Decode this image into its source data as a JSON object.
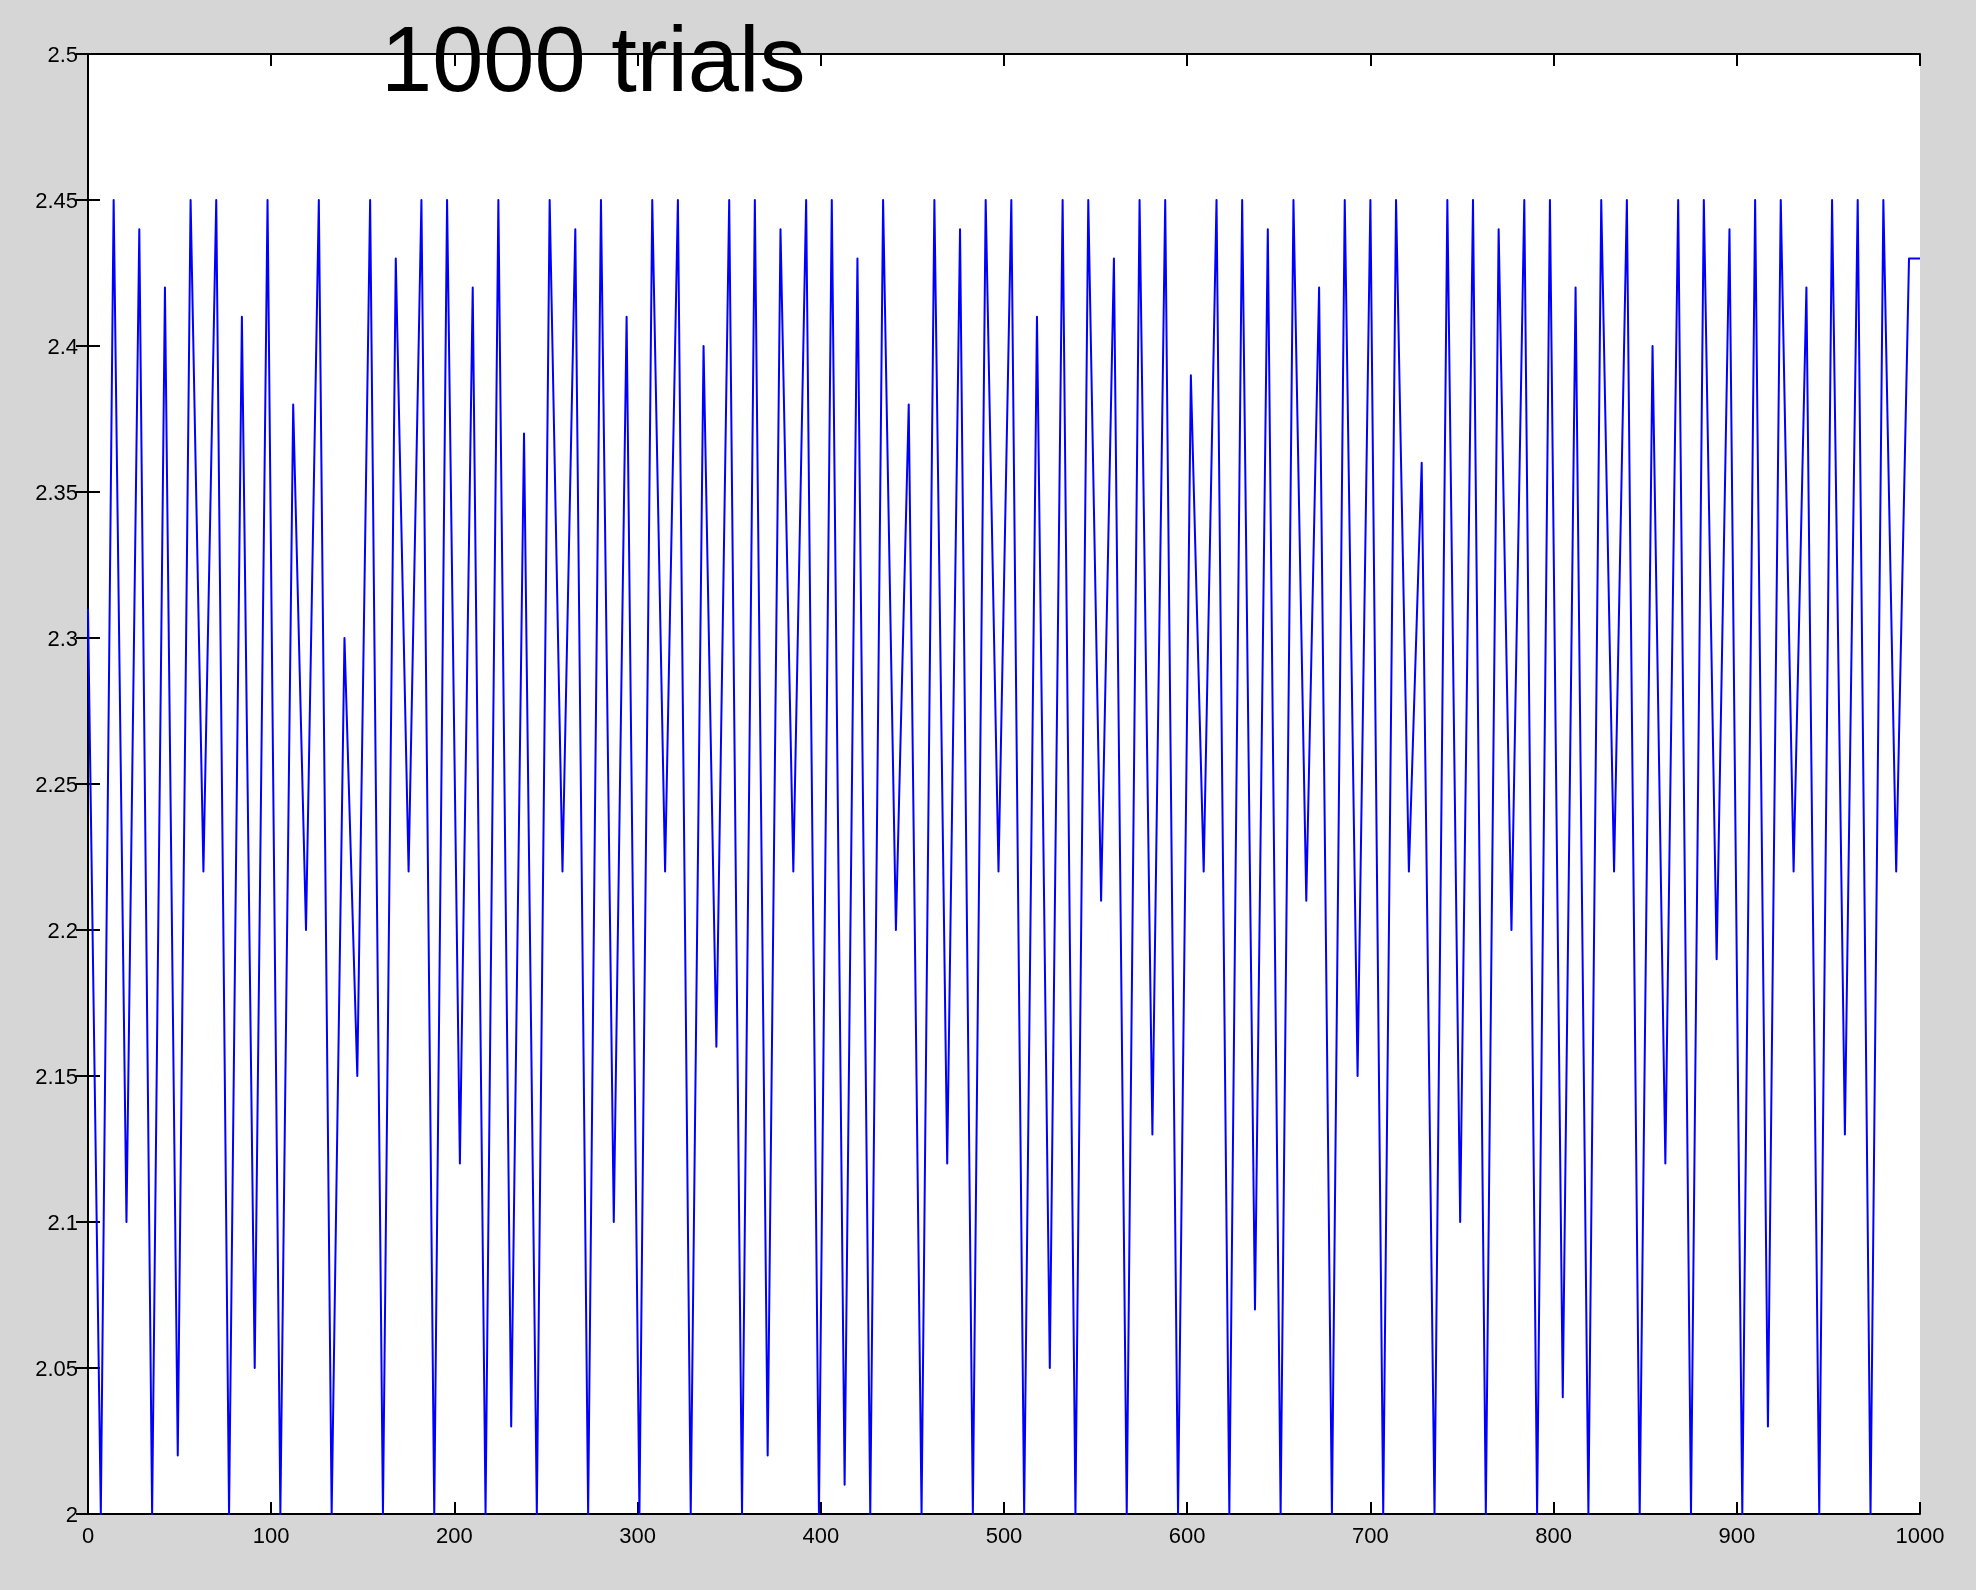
{
  "chart_data": {
    "type": "line",
    "title": "1000 trials",
    "x": [
      0,
      7,
      14,
      21,
      28,
      35,
      42,
      49,
      56,
      63,
      70,
      77,
      84,
      91,
      98,
      105,
      112,
      119,
      126,
      133,
      140,
      147,
      154,
      161,
      168,
      175,
      182,
      189,
      196,
      203,
      210,
      217,
      224,
      231,
      238,
      245,
      252,
      259,
      266,
      273,
      280,
      287,
      294,
      301,
      308,
      315,
      322,
      329,
      336,
      343,
      350,
      357,
      364,
      371,
      378,
      385,
      392,
      399,
      406,
      413,
      420,
      427,
      434,
      441,
      448,
      455,
      462,
      469,
      476,
      483,
      490,
      497,
      504,
      511,
      518,
      525,
      532,
      539,
      546,
      553,
      560,
      567,
      574,
      581,
      588,
      595,
      602,
      609,
      616,
      623,
      630,
      637,
      644,
      651,
      658,
      665,
      672,
      679,
      686,
      693,
      700,
      707,
      714,
      721,
      728,
      735,
      742,
      749,
      756,
      763,
      770,
      777,
      784,
      791,
      798,
      805,
      812,
      819,
      826,
      833,
      840,
      847,
      854,
      861,
      868,
      875,
      882,
      889,
      896,
      903,
      910,
      917,
      924,
      931,
      938,
      945,
      952,
      959,
      966,
      973,
      980,
      987,
      994,
      1000
    ],
    "series": [
      {
        "color": "#0000ff",
        "values": [
          2.31,
          2.0,
          2.45,
          2.1,
          2.44,
          2.0,
          2.42,
          2.02,
          2.45,
          2.22,
          2.45,
          2.0,
          2.41,
          2.05,
          2.45,
          2.0,
          2.38,
          2.2,
          2.45,
          2.0,
          2.3,
          2.15,
          2.45,
          2.0,
          2.43,
          2.22,
          2.45,
          2.0,
          2.45,
          2.12,
          2.42,
          2.0,
          2.45,
          2.03,
          2.37,
          2.0,
          2.45,
          2.22,
          2.44,
          2.0,
          2.45,
          2.1,
          2.41,
          2.0,
          2.45,
          2.22,
          2.45,
          2.0,
          2.4,
          2.16,
          2.45,
          2.0,
          2.45,
          2.02,
          2.44,
          2.22,
          2.45,
          2.0,
          2.45,
          2.01,
          2.43,
          2.0,
          2.45,
          2.2,
          2.38,
          2.0,
          2.45,
          2.12,
          2.44,
          2.0,
          2.45,
          2.22,
          2.45,
          2.0,
          2.41,
          2.05,
          2.45,
          2.0,
          2.45,
          2.21,
          2.43,
          2.0,
          2.45,
          2.13,
          2.45,
          2.0,
          2.39,
          2.22,
          2.45,
          2.0,
          2.45,
          2.07,
          2.44,
          2.0,
          2.45,
          2.21,
          2.42,
          2.0,
          2.45,
          2.15,
          2.45,
          2.0,
          2.45,
          2.22,
          2.36,
          2.0,
          2.45,
          2.1,
          2.45,
          2.0,
          2.44,
          2.2,
          2.45,
          2.0,
          2.45,
          2.04,
          2.42,
          2.0,
          2.45,
          2.22,
          2.45,
          2.0,
          2.4,
          2.12,
          2.45,
          2.0,
          2.45,
          2.19,
          2.44,
          2.0,
          2.45,
          2.03,
          2.45,
          2.22,
          2.42,
          2.0,
          2.45,
          2.13,
          2.45,
          2.0,
          2.45,
          2.22,
          2.43,
          2.43
        ]
      }
    ],
    "xlim": [
      0,
      1000
    ],
    "xticks": [
      0,
      100,
      200,
      300,
      400,
      500,
      600,
      700,
      800,
      900,
      1000
    ],
    "ylim": [
      2,
      2.5
    ],
    "yticks": [
      2,
      2.05,
      2.1,
      2.15,
      2.2,
      2.25,
      2.3,
      2.35,
      2.4,
      2.45,
      2.5
    ],
    "grid": false,
    "marker": "none",
    "line_style": "solid"
  }
}
